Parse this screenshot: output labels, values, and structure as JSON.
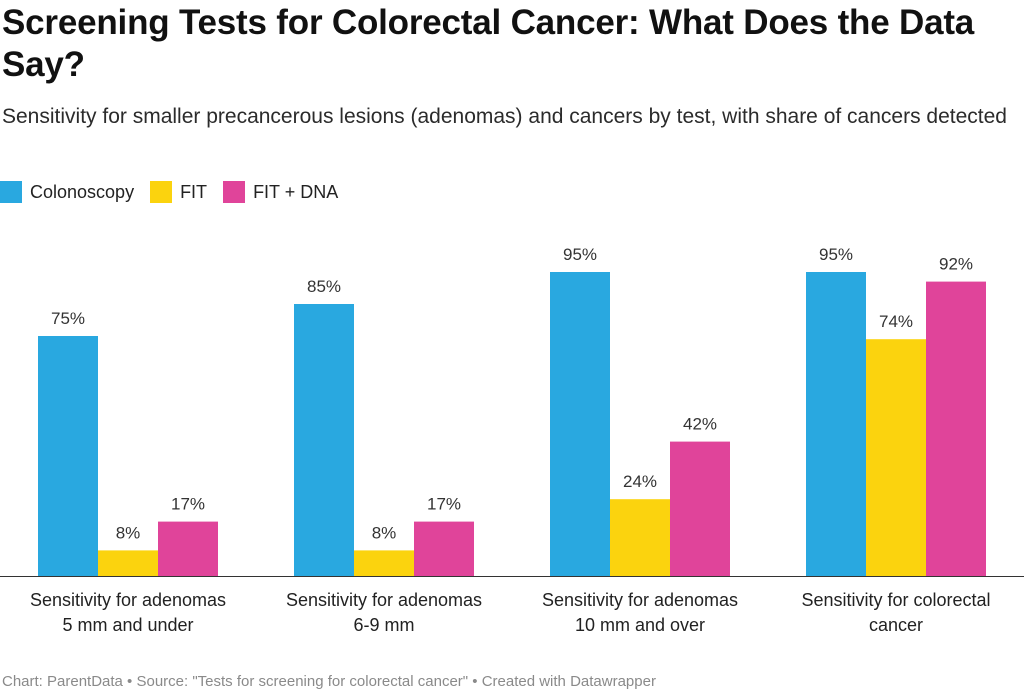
{
  "title": "Screening Tests for Colorectal Cancer: What Does the Data Say?",
  "subtitle": "Sensitivity for smaller precancerous lesions (adenomas) and cancers by test, with share of cancers detected",
  "footer": "Chart: ParentData • Source: \"Tests for screening for colorectal cancer\" • Created with Datawrapper",
  "chart_data": {
    "type": "bar",
    "categories": [
      [
        "Sensitivity for adenomas",
        "5 mm and under"
      ],
      [
        "Sensitivity for adenomas",
        "6-9 mm"
      ],
      [
        "Sensitivity for adenomas",
        "10 mm and over"
      ],
      [
        "Sensitivity for colorectal",
        "cancer"
      ]
    ],
    "series": [
      {
        "name": "Colonoscopy",
        "values": [
          75,
          85,
          95,
          95
        ],
        "labels": [
          "75%",
          "85%",
          "95%",
          "95%"
        ],
        "color": "#29a8e0"
      },
      {
        "name": "FIT",
        "values": [
          8,
          8,
          24,
          74
        ],
        "labels": [
          "8%",
          "8%",
          "24%",
          "74%"
        ],
        "color": "#fbd30e"
      },
      {
        "name": "FIT + DNA",
        "values": [
          17,
          17,
          42,
          92
        ],
        "labels": [
          "17%",
          "17%",
          "42%",
          "92%"
        ],
        "color": "#e0449a"
      }
    ],
    "ylim": [
      0,
      100
    ],
    "grid": false,
    "legend_position": "top-left"
  }
}
